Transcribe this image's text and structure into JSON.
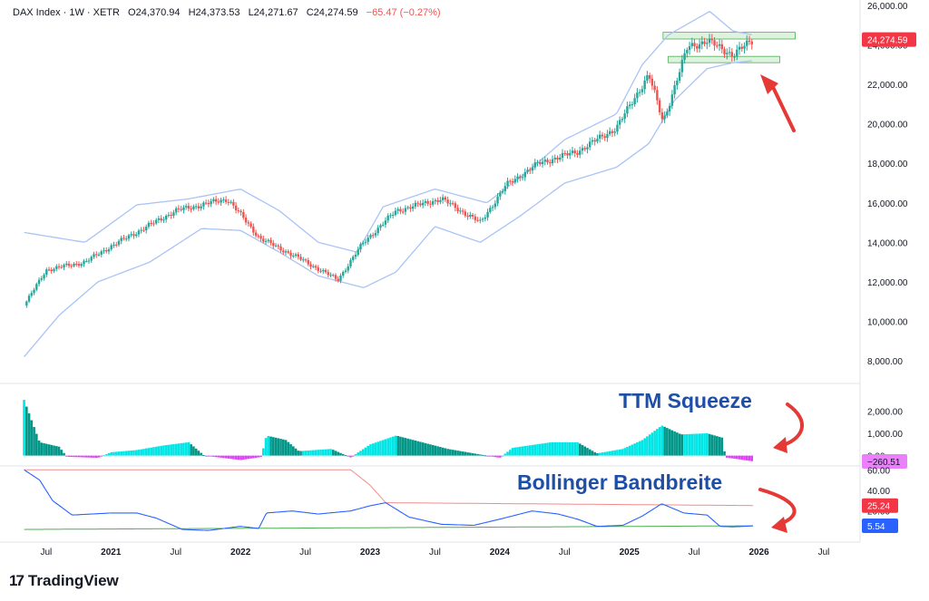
{
  "header": {
    "symbol": "DAX Index · 1W · XETR",
    "open": "O24,370.94",
    "high": "H24,373.53",
    "low": "L24,271.67",
    "close": "C24,274.59",
    "change": "−65.47 (−0.27%)"
  },
  "brand": {
    "logo": "17",
    "name": "TradingView"
  },
  "annotations": {
    "ttm": "TTM Squeeze",
    "bb": "Bollinger Bandbreite"
  },
  "colors": {
    "up": "#26a69a",
    "down": "#ef5350",
    "band": "#a9c4f5",
    "ttm_pos": "#00e5e5",
    "ttm_pos_dark": "#009688",
    "ttm_neg": "#e040fb",
    "bbw": "#2962ff",
    "red_line": "#f28c8c",
    "green_line": "#4caf50",
    "arrow": "#e53935",
    "annotation_text": "#1e4fa6"
  },
  "chart_data": [
    {
      "type": "candlestick",
      "title": "DAX Index",
      "ylim": [
        8000,
        26000
      ],
      "y_ticks": [
        "26,000.00",
        "24,000.00",
        "22,000.00",
        "20,000.00",
        "18,000.00",
        "16,000.00",
        "14,000.00",
        "12,000.00",
        "10,000.00",
        "8,000.00"
      ],
      "last_value_label": "24,274.59",
      "x_ticks": [
        "Jul",
        "2021",
        "Jul",
        "2022",
        "Jul",
        "2023",
        "Jul",
        "2024",
        "Jul",
        "2025",
        "Jul",
        "2026",
        "Jul"
      ],
      "close_anchors": [
        [
          2020.33,
          10800
        ],
        [
          2020.5,
          12600
        ],
        [
          2020.8,
          13000
        ],
        [
          2021.0,
          13800
        ],
        [
          2021.5,
          15600
        ],
        [
          2021.9,
          16200
        ],
        [
          2022.15,
          14200
        ],
        [
          2022.45,
          13200
        ],
        [
          2022.75,
          12100
        ],
        [
          2022.95,
          14000
        ],
        [
          2023.2,
          15600
        ],
        [
          2023.55,
          16200
        ],
        [
          2023.85,
          15000
        ],
        [
          2024.05,
          16900
        ],
        [
          2024.3,
          18000
        ],
        [
          2024.6,
          18600
        ],
        [
          2024.9,
          19800
        ],
        [
          2025.15,
          22500
        ],
        [
          2025.26,
          20100
        ],
        [
          2025.45,
          23900
        ],
        [
          2025.6,
          24200
        ],
        [
          2025.8,
          23500
        ],
        [
          2025.96,
          24274.59
        ]
      ],
      "bollinger_upper_anchors": [
        [
          2020.33,
          14500
        ],
        [
          2020.8,
          14000
        ],
        [
          2021.2,
          15900
        ],
        [
          2021.6,
          16200
        ],
        [
          2022.0,
          16700
        ],
        [
          2022.3,
          15600
        ],
        [
          2022.6,
          14000
        ],
        [
          2022.9,
          13500
        ],
        [
          2023.1,
          15800
        ],
        [
          2023.5,
          16700
        ],
        [
          2023.9,
          16000
        ],
        [
          2024.2,
          17500
        ],
        [
          2024.5,
          19200
        ],
        [
          2024.9,
          20500
        ],
        [
          2025.1,
          23000
        ],
        [
          2025.3,
          24500
        ],
        [
          2025.62,
          25700
        ],
        [
          2025.8,
          24700
        ],
        [
          2025.96,
          24500
        ]
      ],
      "bollinger_lower_anchors": [
        [
          2020.33,
          8200
        ],
        [
          2020.6,
          10300
        ],
        [
          2020.9,
          12000
        ],
        [
          2021.3,
          13000
        ],
        [
          2021.7,
          14700
        ],
        [
          2022.0,
          14600
        ],
        [
          2022.3,
          13500
        ],
        [
          2022.6,
          12300
        ],
        [
          2022.95,
          11700
        ],
        [
          2023.2,
          12500
        ],
        [
          2023.5,
          14800
        ],
        [
          2023.85,
          14000
        ],
        [
          2024.15,
          15300
        ],
        [
          2024.5,
          17000
        ],
        [
          2024.9,
          17800
        ],
        [
          2025.15,
          19000
        ],
        [
          2025.35,
          21200
        ],
        [
          2025.6,
          22800
        ],
        [
          2025.8,
          23100
        ],
        [
          2025.96,
          23200
        ]
      ],
      "resistance_zone": {
        "x": [
          2025.26,
          2026.28
        ],
        "y": [
          24300,
          24640
        ]
      },
      "support_zone": {
        "x": [
          2025.3,
          2026.16
        ],
        "y": [
          23100,
          23420
        ]
      }
    },
    {
      "type": "bar",
      "title": "TTM Squeeze",
      "ylim": [
        -300,
        2950
      ],
      "y_ticks": [
        "2,000.00",
        "1,000.00",
        "0.00"
      ],
      "last_value_label": "−260.51",
      "anchors": [
        [
          2020.33,
          2500
        ],
        [
          2020.45,
          600
        ],
        [
          2020.6,
          400
        ],
        [
          2020.66,
          -50
        ],
        [
          2020.9,
          -100
        ],
        [
          2021.0,
          150
        ],
        [
          2021.2,
          250
        ],
        [
          2021.4,
          450
        ],
        [
          2021.6,
          600
        ],
        [
          2021.72,
          0
        ],
        [
          2022.0,
          -200
        ],
        [
          2022.16,
          -60
        ],
        [
          2022.2,
          900
        ],
        [
          2022.35,
          700
        ],
        [
          2022.45,
          200
        ],
        [
          2022.7,
          300
        ],
        [
          2022.85,
          -80
        ],
        [
          2023.0,
          500
        ],
        [
          2023.2,
          900
        ],
        [
          2023.4,
          600
        ],
        [
          2023.6,
          300
        ],
        [
          2023.85,
          50
        ],
        [
          2024.0,
          -100
        ],
        [
          2024.1,
          350
        ],
        [
          2024.4,
          600
        ],
        [
          2024.6,
          600
        ],
        [
          2024.75,
          100
        ],
        [
          2024.95,
          300
        ],
        [
          2025.1,
          700
        ],
        [
          2025.25,
          1350
        ],
        [
          2025.4,
          950
        ],
        [
          2025.6,
          1000
        ],
        [
          2025.72,
          800
        ],
        [
          2025.74,
          -80
        ],
        [
          2025.96,
          -260.51
        ]
      ]
    },
    {
      "type": "line",
      "title": "Bollinger Bandbreite",
      "ylim": [
        -5,
        62
      ],
      "y_ticks": [
        "60.00",
        "40.00",
        "20.00"
      ],
      "last_value_labels": [
        "25.24",
        "5.54"
      ],
      "series": [
        {
          "role": "bandwidth",
          "anchors": [
            [
              2020.33,
              60
            ],
            [
              2020.45,
              50
            ],
            [
              2020.55,
              30
            ],
            [
              2020.7,
              16
            ],
            [
              2021.0,
              18
            ],
            [
              2021.2,
              18
            ],
            [
              2021.35,
              13
            ],
            [
              2021.55,
              2
            ],
            [
              2021.75,
              1
            ],
            [
              2022.0,
              5
            ],
            [
              2022.14,
              3
            ],
            [
              2022.2,
              18
            ],
            [
              2022.4,
              20
            ],
            [
              2022.6,
              17
            ],
            [
              2022.85,
              20
            ],
            [
              2023.0,
              25
            ],
            [
              2023.12,
              28
            ],
            [
              2023.3,
              14
            ],
            [
              2023.55,
              7
            ],
            [
              2023.8,
              6
            ],
            [
              2024.0,
              12
            ],
            [
              2024.25,
              20
            ],
            [
              2024.45,
              17
            ],
            [
              2024.6,
              12
            ],
            [
              2024.75,
              5
            ],
            [
              2024.95,
              6
            ],
            [
              2025.1,
              15
            ],
            [
              2025.25,
              27
            ],
            [
              2025.42,
              18
            ],
            [
              2025.6,
              16
            ],
            [
              2025.7,
              5
            ],
            [
              2025.8,
              4.5
            ],
            [
              2025.96,
              5.54
            ]
          ]
        },
        {
          "role": "high-level",
          "anchors": [
            [
              2020.33,
              60
            ],
            [
              2022.85,
              60
            ],
            [
              2023.0,
              45
            ],
            [
              2023.12,
              28
            ],
            [
              2025.96,
              25.24
            ]
          ]
        },
        {
          "role": "low-level",
          "anchors": [
            [
              2020.33,
              2
            ],
            [
              2025.96,
              5.54
            ]
          ]
        }
      ]
    }
  ]
}
